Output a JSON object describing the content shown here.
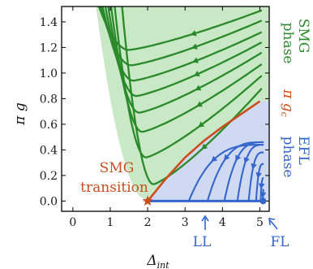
{
  "chart_data": {
    "type": "line",
    "title": "",
    "xlabel": "Δ",
    "xlabel_sub": "int",
    "ylabel": "π g",
    "xlim": [
      -0.3,
      5.25
    ],
    "ylim": [
      -0.08,
      1.52
    ],
    "xticks": [
      0,
      1,
      2,
      3,
      4,
      5
    ],
    "yticks": [
      0.0,
      0.2,
      0.4,
      0.6,
      0.8,
      1.0,
      1.2,
      1.4
    ],
    "ytick_labels": [
      "0.0",
      "0.2",
      "0.4",
      "0.6",
      "0.8",
      "1.0",
      "1.2",
      "1.4"
    ],
    "grid": false,
    "regions": [
      {
        "name": "SMG phase",
        "color": "#c9e8c6"
      },
      {
        "name": "EFL phase",
        "color": "#cfdaf2"
      }
    ],
    "critical_curve": {
      "name": "π g_c",
      "color": "#cc4d1c",
      "points": [
        [
          2.0,
          0.0
        ],
        [
          2.5,
          0.18
        ],
        [
          3.0,
          0.34
        ],
        [
          3.5,
          0.47
        ],
        [
          4.0,
          0.58
        ],
        [
          4.5,
          0.68
        ],
        [
          5.0,
          0.78
        ]
      ]
    },
    "smg_flows": [
      {
        "g0": 0.88,
        "gmin": 0.13,
        "xstart": 1.3
      },
      {
        "g0": 0.98,
        "gmin": 0.34,
        "xstart": 1.1
      },
      {
        "g0": 1.07,
        "gmin": 0.54,
        "xstart": 1.0
      },
      {
        "g0": 1.16,
        "gmin": 0.69,
        "xstart": 0.92
      },
      {
        "g0": 1.24,
        "gmin": 0.82,
        "xstart": 0.84
      },
      {
        "g0": 1.32,
        "gmin": 0.94,
        "xstart": 0.76
      },
      {
        "g0": 1.41,
        "gmin": 1.06,
        "xstart": 0.7
      },
      {
        "g0": 1.49,
        "gmin": 1.18,
        "xstart": 0.64
      }
    ],
    "efl_flows": [
      {
        "x_end": 3.1,
        "g0": 0.44
      },
      {
        "x_end": 3.6,
        "g0": 0.46
      },
      {
        "x_end": 4.05,
        "g0": 0.46
      },
      {
        "x_end": 4.4,
        "g0": 0.44
      },
      {
        "x_end": 4.7,
        "g0": 0.38
      },
      {
        "x_end": 4.9,
        "g0": 0.29
      },
      {
        "x_end": 5.02,
        "g0": 0.18
      },
      {
        "x_end": 5.08,
        "g0": 0.09
      }
    ],
    "fixed_line": {
      "x": [
        2.0,
        5.0
      ],
      "y": 0.0,
      "color": "#3466cc"
    },
    "colors": {
      "smg": "#2a8a2a",
      "efl": "#3466cc",
      "critical": "#cc4d1c"
    }
  },
  "annotations": {
    "smg_phase_line1": "SMG",
    "smg_phase_line2": "phase",
    "critical_label_pi": "π",
    "critical_label_g": "g",
    "critical_label_sub": "c",
    "efl_phase_line1": "EFL",
    "efl_phase_line2": "phase",
    "transition_line1": "SMG",
    "transition_line2": "transition",
    "ll_label": "LL",
    "fl_label": "FL"
  }
}
